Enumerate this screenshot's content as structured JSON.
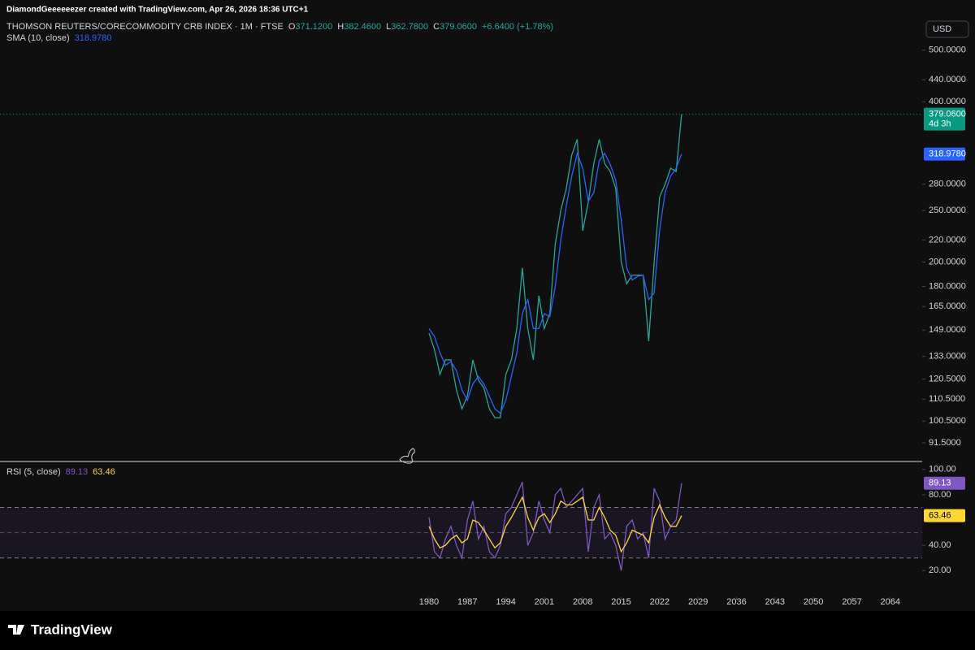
{
  "header": {
    "attribution": "DiamondGeeeeeezer created with TradingView.com, Apr 26, 2026 18:36 UTC+1",
    "currency": "USD"
  },
  "chart_data": [
    {
      "type": "line",
      "title": "THOMSON REUTERS/CORECOMMODITY CRB INDEX · 1M · FTSE",
      "ohlc": [
        {
          "label": "O",
          "value": "371.1200"
        },
        {
          "label": "H",
          "value": "382.4600"
        },
        {
          "label": "L",
          "value": "362.7800"
        },
        {
          "label": "C",
          "value": "379.0600"
        }
      ],
      "change": "+6.6400 (+1.78%)",
      "indicator": {
        "name": "SMA (10, close)",
        "value": "318.9780"
      },
      "countdown": "4d 3h",
      "log_scale": true,
      "x": [
        1980,
        1981,
        1982,
        1983,
        1984,
        1985,
        1986,
        1987,
        1988,
        1989,
        1990,
        1991,
        1992,
        1993,
        1994,
        1995,
        1996,
        1997,
        1998,
        1999,
        2000,
        2001,
        2002,
        2003,
        2004,
        2005,
        2006,
        2007,
        2008,
        2009,
        2010,
        2011,
        2012,
        2013,
        2014,
        2015,
        2016,
        2017,
        2018,
        2019,
        2020,
        2021,
        2022,
        2023,
        2024,
        2025,
        2026
      ],
      "series": [
        {
          "color": "#26a69a",
          "values": [
            147,
            137,
            123,
            131,
            131,
            115,
            106,
            112,
            131,
            120,
            116,
            106,
            102,
            102,
            123,
            131,
            150,
            195,
            150,
            131,
            173,
            150,
            160,
            216,
            250,
            275,
            318,
            340,
            229,
            259,
            306,
            340,
            306,
            296,
            275,
            200,
            182,
            189,
            189,
            189,
            142,
            200,
            265,
            280,
            300,
            296,
            379.06
          ]
        },
        {
          "color": "#2962ff",
          "values": [
            150,
            145,
            135,
            128,
            130,
            125,
            115,
            110,
            118,
            122,
            118,
            112,
            106,
            104,
            110,
            122,
            135,
            160,
            170,
            150,
            150,
            160,
            158,
            180,
            220,
            255,
            290,
            320,
            300,
            260,
            270,
            310,
            320,
            305,
            285,
            240,
            195,
            185,
            188,
            189,
            170,
            175,
            230,
            270,
            290,
            300,
            318.978
          ]
        }
      ],
      "xlim": [
        1901.9,
        2069.8
      ],
      "xticks": [
        1980,
        1987,
        1994,
        2001,
        2008,
        2015,
        2022,
        2029,
        2036,
        2043,
        2050,
        2057,
        2064
      ],
      "ylim": [
        84.4,
        569
      ],
      "yticks": [
        {
          "value": 500,
          "label": "500.0000"
        },
        {
          "value": 440,
          "label": "440.0000"
        },
        {
          "value": 400,
          "label": "400.0000"
        },
        {
          "value": 280,
          "label": "280.0000"
        },
        {
          "value": 250,
          "label": "250.0000"
        },
        {
          "value": 220,
          "label": "220.0000"
        },
        {
          "value": 200,
          "label": "200.0000"
        },
        {
          "value": 180,
          "label": "180.0000"
        },
        {
          "value": 165,
          "label": "165.0000"
        },
        {
          "value": 149,
          "label": "149.0000"
        },
        {
          "value": 133,
          "label": "133.0000"
        },
        {
          "value": 120.5,
          "label": "120.5000"
        },
        {
          "value": 110.5,
          "label": "110.5000"
        },
        {
          "value": 100.5,
          "label": "100.5000"
        },
        {
          "value": 91.5,
          "label": "91.5000"
        }
      ]
    },
    {
      "type": "line",
      "title": "RSI (5, close)",
      "series": [
        {
          "color": "#7e57c2",
          "values": [
            62,
            35,
            30,
            45,
            55,
            40,
            30,
            60,
            75,
            45,
            55,
            35,
            30,
            40,
            65,
            70,
            80,
            90,
            40,
            50,
            75,
            60,
            50,
            80,
            85,
            70,
            75,
            80,
            85,
            35,
            70,
            80,
            45,
            50,
            40,
            20,
            55,
            60,
            45,
            50,
            30,
            85,
            75,
            45,
            55,
            60,
            89.13
          ]
        },
        {
          "color": "#fdd835",
          "values": [
            55,
            45,
            38,
            40,
            45,
            48,
            42,
            45,
            60,
            58,
            52,
            45,
            38,
            42,
            55,
            62,
            70,
            78,
            62,
            52,
            62,
            65,
            58,
            65,
            75,
            72,
            72,
            75,
            78,
            60,
            60,
            70,
            62,
            52,
            48,
            35,
            42,
            52,
            50,
            48,
            42,
            62,
            72,
            62,
            55,
            55,
            63.46
          ]
        }
      ],
      "band": [
        30,
        70
      ],
      "midline": 50,
      "ylim": [
        -1,
        105
      ],
      "yticks": [
        {
          "value": 100,
          "label": "100.00"
        },
        {
          "value": 80,
          "label": "80.00"
        },
        {
          "value": 40,
          "label": "40.00"
        },
        {
          "value": 20,
          "label": "20.00"
        }
      ]
    }
  ],
  "footer": {
    "logo": "TradingView"
  }
}
